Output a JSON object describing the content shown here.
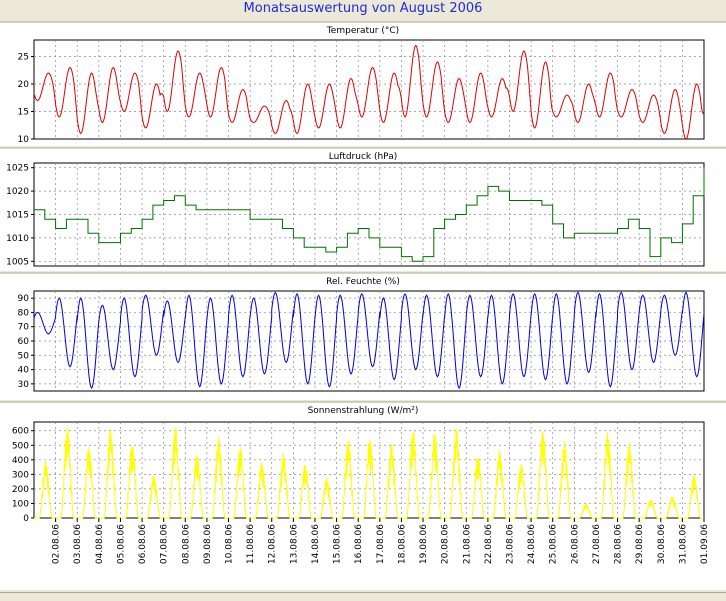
{
  "title": "Monatsauswertung von August 2006",
  "dates": [
    "02.08.06",
    "03.08.06",
    "04.08.06",
    "05.08.06",
    "06.08.06",
    "07.08.06",
    "08.08.06",
    "09.08.06",
    "10.08.06",
    "11.08.06",
    "12.08.06",
    "13.08.06",
    "14.08.06",
    "15.08.06",
    "16.08.06",
    "17.08.06",
    "18.08.06",
    "19.08.06",
    "20.08.06",
    "21.08.06",
    "22.08.06",
    "23.08.06",
    "24.08.06",
    "25.08.06",
    "26.08.06",
    "27.08.06",
    "28.08.06",
    "29.08.06",
    "30.08.06",
    "31.08.06",
    "01.09.06"
  ],
  "chart_data": [
    {
      "type": "line",
      "title": "Temperatur (°C)",
      "ylim": [
        10,
        28
      ],
      "yticks": [
        10,
        15,
        20,
        25
      ],
      "grid": true,
      "color": "#e00000",
      "x_start": "01.08.06",
      "x_end": "01.09.06",
      "series": [
        {
          "daily_min": [
            17,
            14,
            11,
            13,
            15,
            12,
            15,
            14,
            14,
            13,
            13,
            11,
            11,
            12,
            12,
            14,
            13,
            14,
            14,
            13,
            13,
            14,
            15,
            12,
            14,
            13,
            14,
            14,
            13,
            11,
            10,
            15
          ],
          "daily_max": [
            22,
            23,
            22,
            23,
            22,
            20,
            26,
            22,
            23,
            19,
            16,
            17,
            20,
            20,
            21,
            23,
            22,
            27,
            24,
            21,
            22,
            21,
            26,
            24,
            18,
            20,
            22,
            19,
            18,
            19,
            20,
            15
          ]
        }
      ]
    },
    {
      "type": "line",
      "title": "Luftdruck (hPa)",
      "ylim": [
        1004,
        1026
      ],
      "yticks": [
        1005,
        1010,
        1015,
        1020,
        1025
      ],
      "grid": true,
      "color": "#007000",
      "series": [
        {
          "x_days": [
            0,
            0.5,
            1,
            1.5,
            2,
            2.5,
            3,
            3.5,
            4,
            4.5,
            5,
            5.5,
            6,
            6.5,
            7,
            7.5,
            8,
            8.5,
            9,
            9.5,
            10,
            10.5,
            11,
            11.5,
            12,
            12.5,
            13,
            13.5,
            14,
            14.5,
            15,
            15.5,
            16,
            16.5,
            17,
            17.5,
            18,
            18.5,
            19,
            19.5,
            20,
            20.5,
            21,
            21.5,
            22,
            22.5,
            23,
            23.5,
            24,
            24.5,
            25,
            25.5,
            26,
            26.5,
            27,
            27.5,
            28,
            28.5,
            29,
            29.5,
            30,
            30.5,
            31
          ],
          "values": [
            1016,
            1014,
            1012,
            1014,
            1014,
            1011,
            1009,
            1009,
            1011,
            1012,
            1014,
            1017,
            1018,
            1019,
            1017,
            1016,
            1016,
            1016,
            1016,
            1016,
            1014,
            1014,
            1014,
            1012,
            1010,
            1008,
            1008,
            1007,
            1008,
            1011,
            1012,
            1010,
            1008,
            1008,
            1006,
            1005,
            1006,
            1012,
            1014,
            1015,
            1017,
            1019,
            1021,
            1020,
            1018,
            1018,
            1018,
            1017,
            1013,
            1010,
            1011,
            1011,
            1011,
            1011,
            1012,
            1014,
            1012,
            1006,
            1010,
            1009,
            1013,
            1019,
            1025
          ]
        }
      ]
    },
    {
      "type": "line",
      "title": "Rel. Feuchte (%)",
      "ylim": [
        25,
        95
      ],
      "yticks": [
        30,
        40,
        50,
        60,
        70,
        80,
        90
      ],
      "grid": true,
      "color": "#0000e0",
      "series": [
        {
          "daily_min": [
            65,
            42,
            27,
            40,
            35,
            50,
            45,
            28,
            30,
            35,
            37,
            45,
            30,
            28,
            37,
            42,
            33,
            40,
            35,
            27,
            35,
            30,
            35,
            33,
            30,
            38,
            28,
            40,
            45,
            50,
            35,
            34
          ],
          "daily_max": [
            80,
            90,
            90,
            85,
            90,
            92,
            88,
            92,
            90,
            92,
            90,
            94,
            93,
            92,
            92,
            93,
            90,
            93,
            92,
            93,
            92,
            92,
            93,
            93,
            93,
            94,
            93,
            94,
            92,
            92,
            94,
            62
          ]
        }
      ]
    },
    {
      "type": "line",
      "title": "Sonnenstrahlung (W/m²)",
      "ylim": [
        0,
        660
      ],
      "yticks": [
        0,
        100,
        200,
        300,
        400,
        500,
        600
      ],
      "grid": true,
      "color": "#ffff00",
      "series": [
        {
          "daily_peak": [
            400,
            640,
            500,
            620,
            520,
            300,
            640,
            450,
            560,
            500,
            390,
            450,
            380,
            280,
            550,
            560,
            520,
            620,
            600,
            630,
            440,
            470,
            380,
            620,
            530,
            100,
            600,
            520,
            130,
            150,
            300,
            560
          ]
        }
      ]
    }
  ]
}
